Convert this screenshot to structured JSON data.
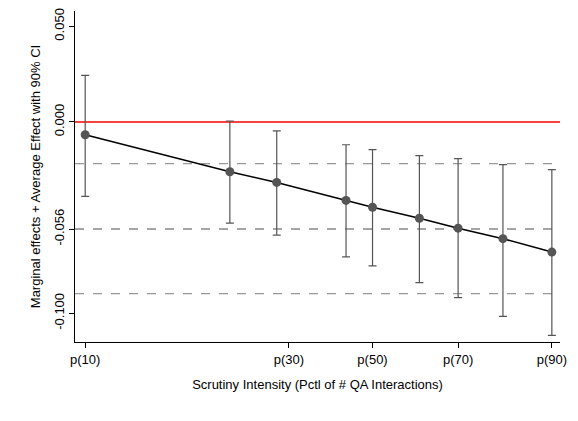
{
  "chart_data": {
    "type": "scatter",
    "x_label": "Scrutiny Intensity (Pctl of # QA Interactions)",
    "y_label": "Marginal effects + Average Effect with 90% CI",
    "x": [
      2,
      9.1,
      11.4,
      14.8,
      16.1,
      18.4,
      20.3,
      22.5,
      24.9
    ],
    "values": [
      -0.0067,
      -0.026,
      -0.0316,
      -0.041,
      -0.0446,
      -0.0503,
      -0.0555,
      -0.061,
      -0.068
    ],
    "ci_lower": [
      -0.0389,
      -0.0529,
      -0.0591,
      -0.0705,
      -0.0752,
      -0.084,
      -0.0918,
      -0.1016,
      -0.1115
    ],
    "ci_upper": [
      0.0244,
      0.0005,
      -0.0047,
      -0.0119,
      -0.0145,
      -0.0176,
      -0.0192,
      -0.0223,
      -0.0249
    ],
    "color": "#555555",
    "marker": "circle",
    "line_color": "#000000",
    "zero_line": {
      "value": 0,
      "color": "#ff0000"
    },
    "average_effect": {
      "value": -0.056,
      "ci_lower": -0.0897,
      "ci_upper": -0.0218,
      "color": "#999999",
      "line_style": "dash"
    },
    "xlim": [
      1.5,
      25.3
    ],
    "xticks": [
      {
        "value": 2,
        "label": "p(10)"
      },
      {
        "value": 12,
        "label": "p(30)"
      },
      {
        "value": 16.1,
        "label": "p(50)"
      },
      {
        "value": 20.3,
        "label": "p(70)"
      },
      {
        "value": 24.9,
        "label": "p(90)"
      }
    ],
    "ylim": [
      -0.115,
      0.058
    ],
    "yticks": [
      {
        "value": 0.05,
        "label": "0.050"
      },
      {
        "value": 0,
        "label": "0.000"
      },
      -0.056,
      {
        "value": -0.1,
        "label": "-0.100"
      }
    ],
    "grid": false
  }
}
